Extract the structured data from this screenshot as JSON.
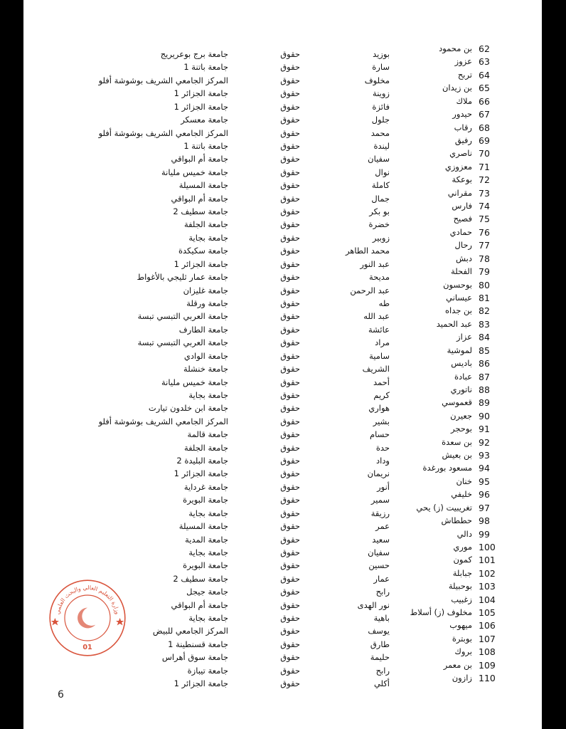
{
  "page_number": "6",
  "stamp": {
    "text": "وزارة التعليم العالي والبحث العلمي",
    "code": "01",
    "color": "#d9543c"
  },
  "rows": [
    {
      "n": "62",
      "surname": "بن محمود",
      "first": "بوزيد",
      "field": "حقوق",
      "university": "جامعة برج بوعريريج"
    },
    {
      "n": "63",
      "surname": "عزوز",
      "first": "سارة",
      "field": "حقوق",
      "university": "جامعة باتنة 1"
    },
    {
      "n": "64",
      "surname": "تربح",
      "first": "مخلوف",
      "field": "حقوق",
      "university": "المركز الجامعي الشريف بوشوشة أفلو"
    },
    {
      "n": "65",
      "surname": "بن زيدان",
      "first": "زوينة",
      "field": "حقوق",
      "university": "جامعة الجزائر 1"
    },
    {
      "n": "66",
      "surname": "ملاك",
      "first": "فائزة",
      "field": "حقوق",
      "university": "جامعة الجزائر 1"
    },
    {
      "n": "67",
      "surname": "حيدور",
      "first": "جلول",
      "field": "حقوق",
      "university": "جامعة معسكر"
    },
    {
      "n": "68",
      "surname": "رقاب",
      "first": "محمد",
      "field": "حقوق",
      "university": "المركز الجامعي الشريف بوشوشة أفلو"
    },
    {
      "n": "69",
      "surname": "رفيق",
      "first": "ليندة",
      "field": "حقوق",
      "university": "جامعة باتنة 1"
    },
    {
      "n": "70",
      "surname": "ناصري",
      "first": "سفيان",
      "field": "حقوق",
      "university": "جامعة أم البواقي"
    },
    {
      "n": "71",
      "surname": "معزوزي",
      "first": "نوال",
      "field": "حقوق",
      "university": "جامعة خميس مليانة"
    },
    {
      "n": "72",
      "surname": "بوعكة",
      "first": "كاملة",
      "field": "حقوق",
      "university": "جامعة المسيلة"
    },
    {
      "n": "73",
      "surname": "مقراني",
      "first": "جمال",
      "field": "حقوق",
      "university": "جامعة أم البواقي"
    },
    {
      "n": "74",
      "surname": "فارس",
      "first": "بو بكر",
      "field": "حقوق",
      "university": "جامعة سطيف 2"
    },
    {
      "n": "75",
      "surname": "فصيح",
      "first": "خضرة",
      "field": "حقوق",
      "university": "جامعة الجلفة"
    },
    {
      "n": "76",
      "surname": "حمادي",
      "first": "زوبير",
      "field": "حقوق",
      "university": "جامعة بجاية"
    },
    {
      "n": "77",
      "surname": "رحال",
      "first": "محمد الطاهر",
      "field": "حقوق",
      "university": "جامعة سكيكدة"
    },
    {
      "n": "78",
      "surname": "دبش",
      "first": "عبد النور",
      "field": "حقوق",
      "university": "جامعة الجزائر 1"
    },
    {
      "n": "79",
      "surname": "الفحلة",
      "first": "مديحة",
      "field": "حقوق",
      "university": "جامعة عمار ثليجي بالأغواط"
    },
    {
      "n": "80",
      "surname": "بوحسون",
      "first": "عبد الرحمن",
      "field": "حقوق",
      "university": "جامعة غليزان"
    },
    {
      "n": "81",
      "surname": "عيساني",
      "first": "طه",
      "field": "حقوق",
      "university": "جامعة ورقلة"
    },
    {
      "n": "82",
      "surname": "بن جداه",
      "first": "عبد الله",
      "field": "حقوق",
      "university": "جامعة العربي التبسي تبسة"
    },
    {
      "n": "83",
      "surname": "عبد الحميد",
      "first": "عائشة",
      "field": "حقوق",
      "university": "جامعة الطارف"
    },
    {
      "n": "84",
      "surname": "عزاز",
      "first": "مراد",
      "field": "حقوق",
      "university": "جامعة العربي التبسي تبسة"
    },
    {
      "n": "85",
      "surname": "لموشية",
      "first": "سامية",
      "field": "حقوق",
      "university": "جامعة الوادي"
    },
    {
      "n": "86",
      "surname": "باديس",
      "first": "الشريف",
      "field": "حقوق",
      "university": "جامعة خنشلة"
    },
    {
      "n": "87",
      "surname": "عبادة",
      "first": "أحمد",
      "field": "حقوق",
      "university": "جامعة خميس مليانة"
    },
    {
      "n": "88",
      "surname": "ناتوري",
      "first": "كريم",
      "field": "حقوق",
      "university": "جامعة بجاية"
    },
    {
      "n": "89",
      "surname": "قعموسي",
      "first": "هواري",
      "field": "حقوق",
      "university": "جامعة ابن خلدون تيارت"
    },
    {
      "n": "90",
      "surname": "جعيرن",
      "first": "بشير",
      "field": "حقوق",
      "university": "المركز الجامعي الشريف بوشوشة أفلو"
    },
    {
      "n": "91",
      "surname": "بوحجر",
      "first": "حسام",
      "field": "حقوق",
      "university": "جامعة قالمة"
    },
    {
      "n": "92",
      "surname": "بن سعدة",
      "first": "حدة",
      "field": "حقوق",
      "university": "جامعة الجلفة"
    },
    {
      "n": "93",
      "surname": "بن بعيش",
      "first": "وداد",
      "field": "حقوق",
      "university": "جامعة البليدة 2"
    },
    {
      "n": "94",
      "surname": "مسعود بورغدة",
      "first": "نريمان",
      "field": "حقوق",
      "university": "جامعة الجزائر 1"
    },
    {
      "n": "95",
      "surname": "خنان",
      "first": "أنور",
      "field": "حقوق",
      "university": "جامعة غرداية"
    },
    {
      "n": "96",
      "surname": "خليفي",
      "first": "سمير",
      "field": "حقوق",
      "university": "جامعة البويرة"
    },
    {
      "n": "97",
      "surname": "تغريبيت (ز) يحي",
      "first": "رزيقة",
      "field": "حقوق",
      "university": "جامعة بجاية"
    },
    {
      "n": "98",
      "surname": "حططاش",
      "first": "عمر",
      "field": "حقوق",
      "university": "جامعة المسيلة"
    },
    {
      "n": "99",
      "surname": "دالي",
      "first": "سعيد",
      "field": "حقوق",
      "university": "جامعة المدية"
    },
    {
      "n": "100",
      "surname": "موري",
      "first": "سفيان",
      "field": "حقوق",
      "university": "جامعة بجاية"
    },
    {
      "n": "101",
      "surname": "كمون",
      "first": "حسين",
      "field": "حقوق",
      "university": "جامعة البويرة"
    },
    {
      "n": "102",
      "surname": "جبابلة",
      "first": "عمار",
      "field": "حقوق",
      "university": "جامعة سطيف 2"
    },
    {
      "n": "103",
      "surname": "بوحبيلة",
      "first": "رابح",
      "field": "حقوق",
      "university": "جامعة جيجل"
    },
    {
      "n": "104",
      "surname": "زغبيب",
      "first": "نور الهدى",
      "field": "حقوق",
      "university": "جامعة أم البواقي"
    },
    {
      "n": "105",
      "surname": "مخلوف (ز) أسلاط",
      "first": "باهية",
      "field": "حقوق",
      "university": "جامعة بجاية"
    },
    {
      "n": "106",
      "surname": "ميهوب",
      "first": "يوسف",
      "field": "حقوق",
      "university": "المركز الجامعي للبيض"
    },
    {
      "n": "107",
      "surname": "بوبترة",
      "first": "طارق",
      "field": "حقوق",
      "university": "جامعة قسنطينة 1"
    },
    {
      "n": "108",
      "surname": "بروك",
      "first": "حليمة",
      "field": "حقوق",
      "university": "جامعة سوق أهراس"
    },
    {
      "n": "109",
      "surname": "بن معمر",
      "first": "رابح",
      "field": "حقوق",
      "university": "جامعة تيبازة"
    },
    {
      "n": "110",
      "surname": "زازون",
      "first": "أكلي",
      "field": "حقوق",
      "university": "جامعة الجزائر 1"
    }
  ]
}
